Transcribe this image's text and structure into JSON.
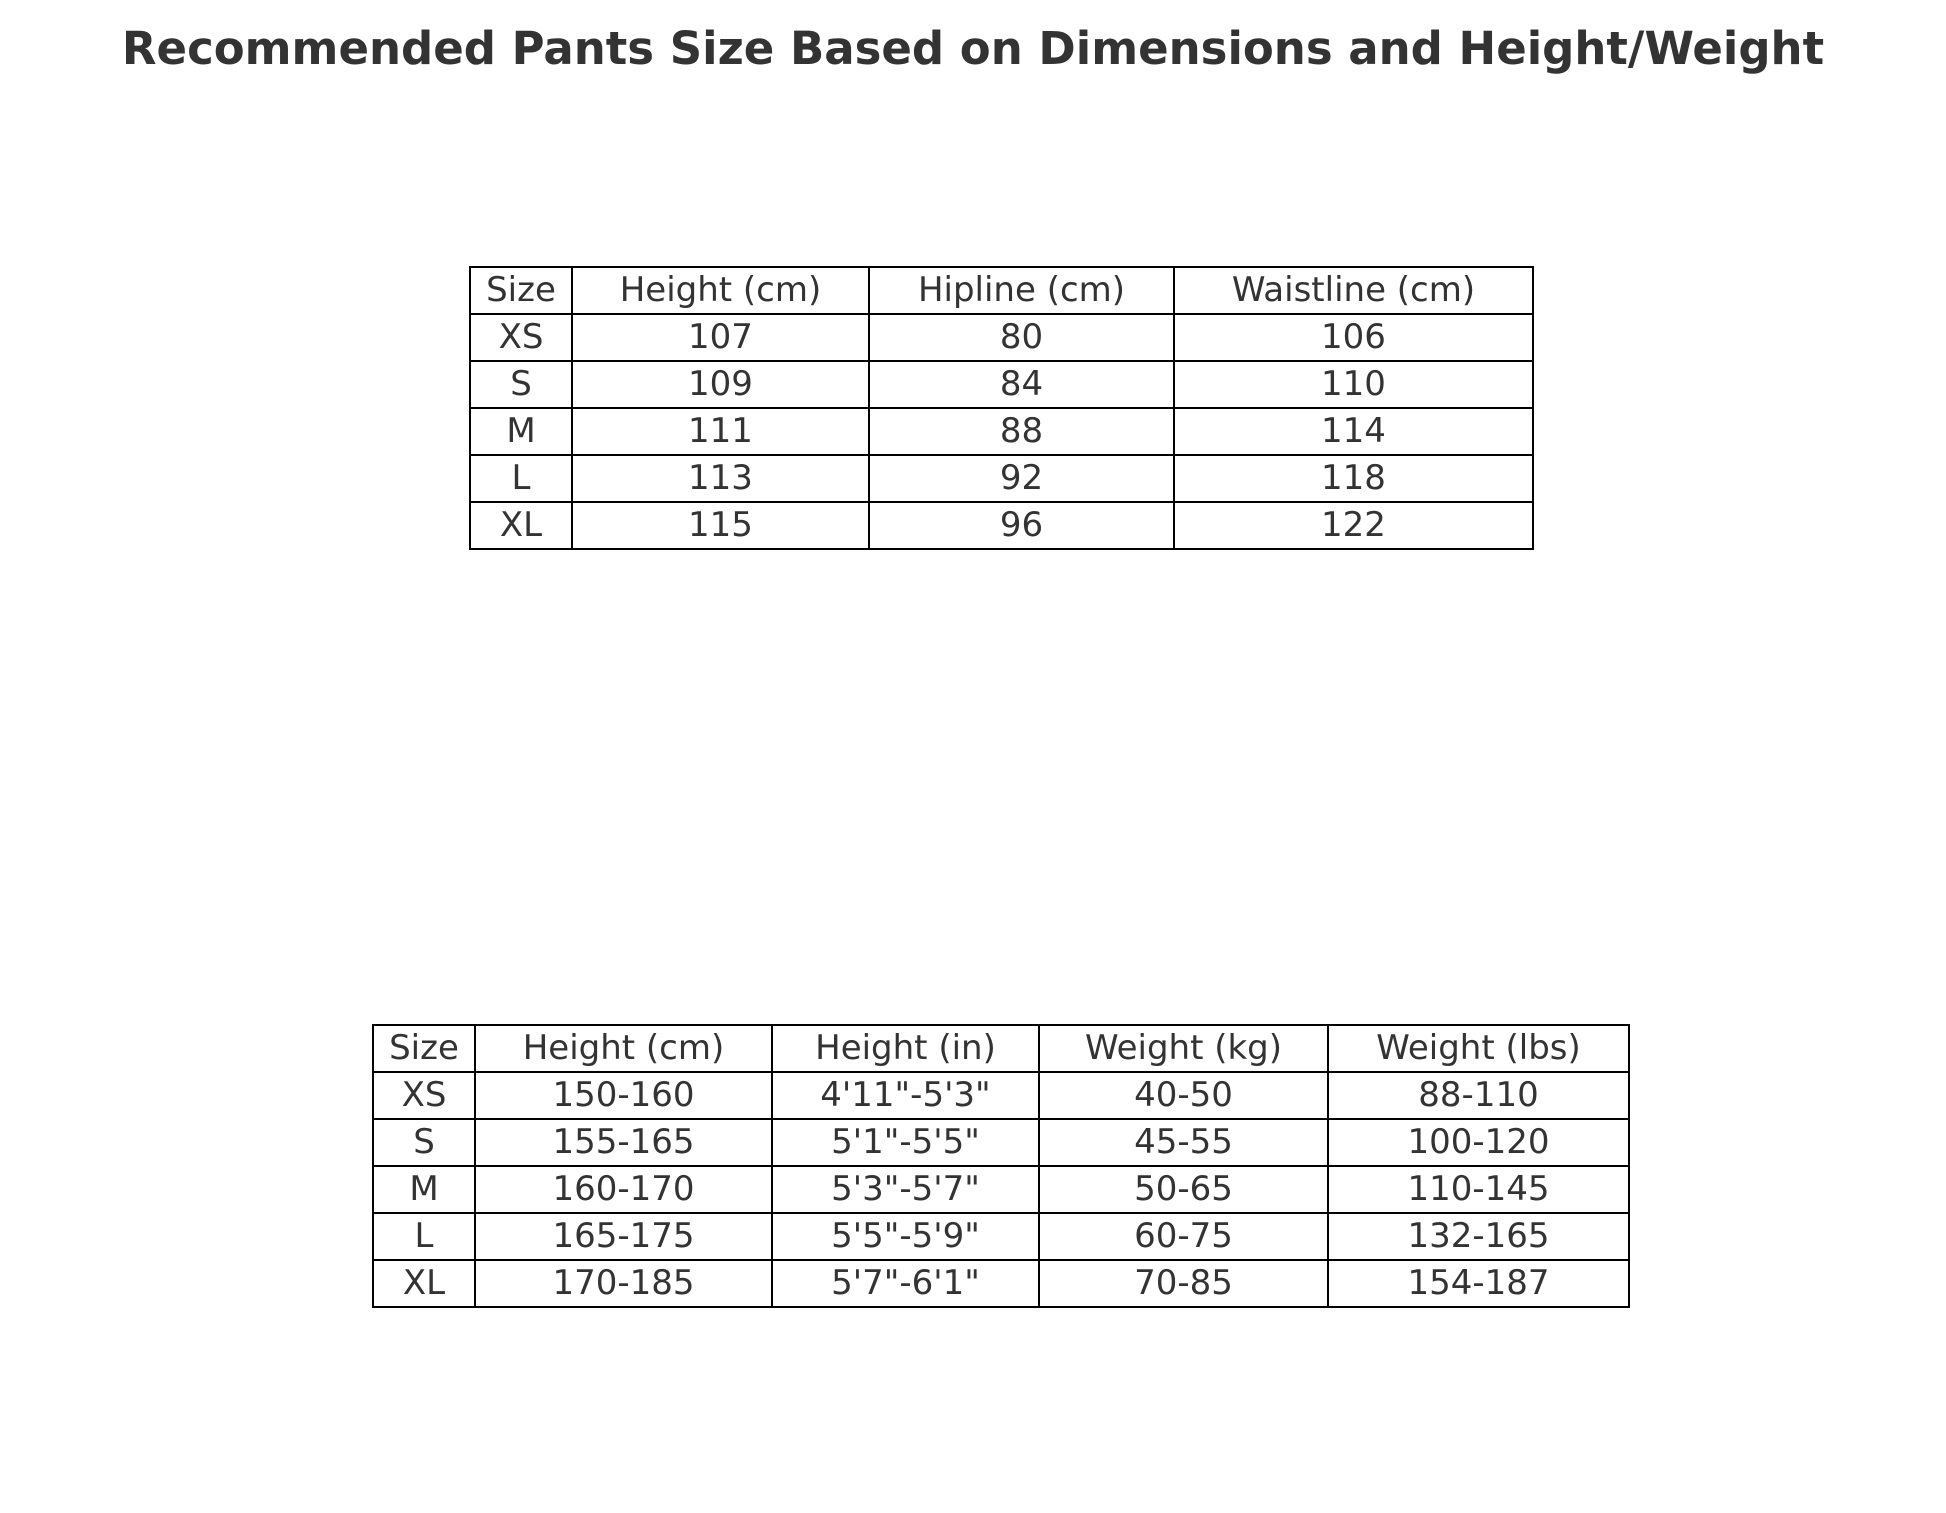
{
  "title": "Recommended Pants Size Based on Dimensions and Height/Weight",
  "dimensions_table": {
    "headers": [
      "Size",
      "Height (cm)",
      "Hipline (cm)",
      "Waistline (cm)"
    ],
    "rows": [
      [
        "XS",
        "107",
        "80",
        "106"
      ],
      [
        "S",
        "109",
        "84",
        "110"
      ],
      [
        "M",
        "111",
        "88",
        "114"
      ],
      [
        "L",
        "113",
        "92",
        "118"
      ],
      [
        "XL",
        "115",
        "96",
        "122"
      ]
    ]
  },
  "height_weight_table": {
    "headers": [
      "Size",
      "Height (cm)",
      "Height (in)",
      "Weight (kg)",
      "Weight (lbs)"
    ],
    "rows": [
      [
        "XS",
        "150-160",
        "4'11\"-5'3\"",
        "40-50",
        "88-110"
      ],
      [
        "S",
        "155-165",
        "5'1\"-5'5\"",
        "45-55",
        "100-120"
      ],
      [
        "M",
        "160-170",
        "5'3\"-5'7\"",
        "50-65",
        "110-145"
      ],
      [
        "L",
        "165-175",
        "5'5\"-5'9\"",
        "60-75",
        "132-165"
      ],
      [
        "XL",
        "170-185",
        "5'7\"-6'1\"",
        "70-85",
        "154-187"
      ]
    ]
  }
}
